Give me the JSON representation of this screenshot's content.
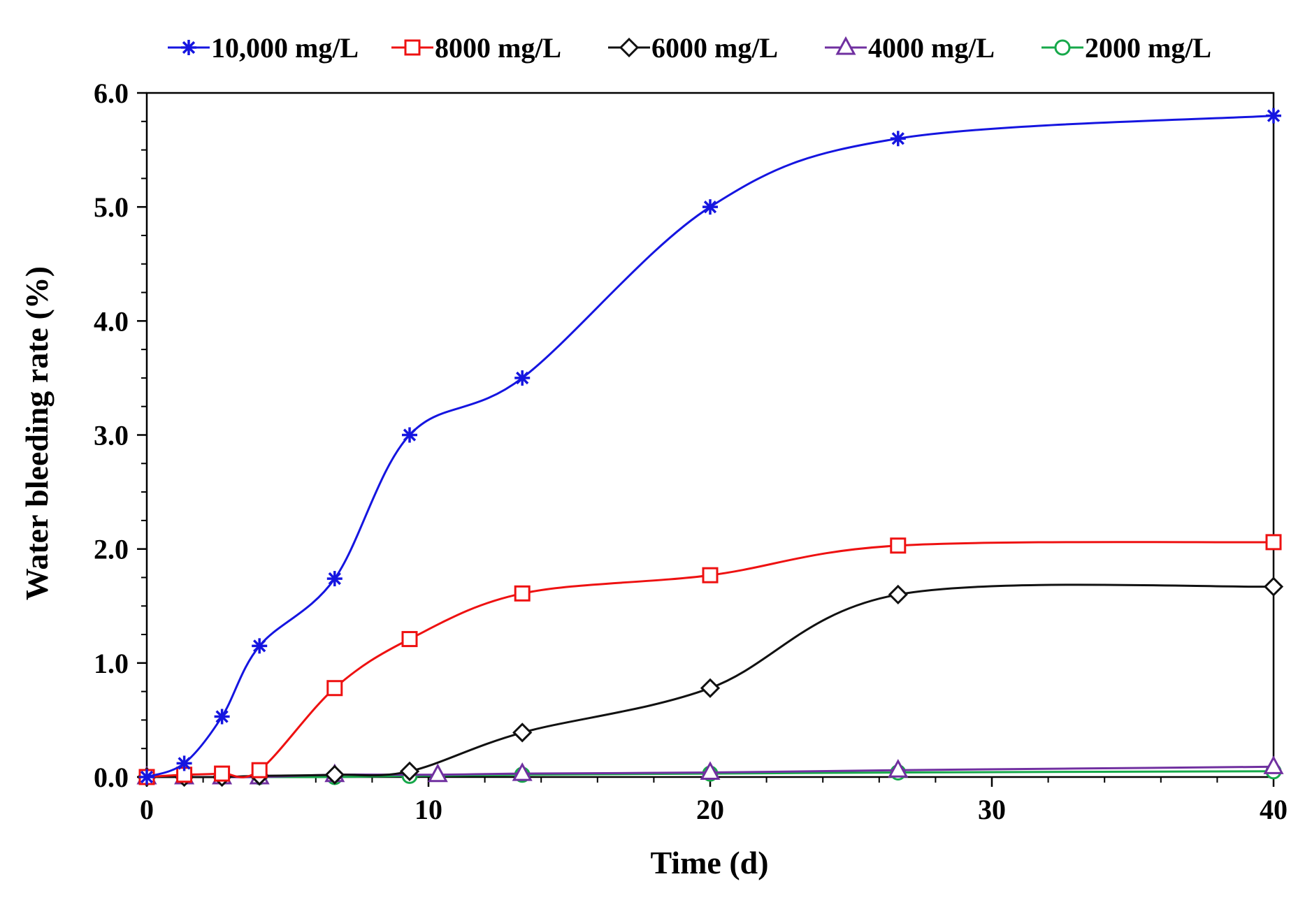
{
  "chart_data": {
    "type": "line",
    "title": "",
    "xlabel": "Time (d)",
    "ylabel": "Water bleeding rate (%)",
    "xlim": [
      0,
      40
    ],
    "ylim": [
      0,
      6
    ],
    "x_ticks": [
      0,
      10,
      20,
      30,
      40
    ],
    "x_tick_labels": [
      "0",
      "10",
      "20",
      "30",
      "40"
    ],
    "y_ticks": [
      0,
      1,
      2,
      3,
      4,
      5,
      6
    ],
    "y_tick_labels": [
      "0.0",
      "1.0",
      "2.0",
      "3.0",
      "4.0",
      "5.0",
      "6.0"
    ],
    "x_minor_step": 2,
    "y_minor_step": 0.25,
    "grid": false,
    "legend_position": "top",
    "series": [
      {
        "name": "10,000 mg/L",
        "marker": "asterisk",
        "color": "#1515E0",
        "x": [
          0,
          1.33,
          2.67,
          4,
          6.67,
          9.33,
          13.33,
          20,
          26.67,
          40
        ],
        "y": [
          0,
          0.12,
          0.53,
          1.15,
          1.74,
          3.0,
          3.5,
          5.0,
          5.6,
          5.8
        ]
      },
      {
        "name": "8000 mg/L",
        "marker": "square",
        "color": "#EE1111",
        "x": [
          0,
          1.33,
          2.67,
          4,
          6.67,
          9.33,
          13.33,
          20,
          26.67,
          40
        ],
        "y": [
          0,
          0.02,
          0.03,
          0.06,
          0.78,
          1.21,
          1.61,
          1.77,
          2.03,
          2.06
        ]
      },
      {
        "name": "6000 mg/L",
        "marker": "diamond",
        "color": "#111111",
        "x": [
          0,
          1.33,
          2.67,
          4,
          6.67,
          9.33,
          13.33,
          20,
          26.67,
          40
        ],
        "y": [
          0,
          0,
          0,
          0.01,
          0.02,
          0.05,
          0.39,
          0.78,
          1.6,
          1.67
        ]
      },
      {
        "name": "4000 mg/L",
        "marker": "triangle",
        "color": "#7030A0",
        "x": [
          0,
          1.33,
          2.67,
          4,
          6.67,
          10.33,
          13.33,
          20,
          26.67,
          40
        ],
        "y": [
          0,
          0,
          0,
          0,
          0.02,
          0.02,
          0.03,
          0.04,
          0.06,
          0.09
        ]
      },
      {
        "name": "2000 mg/L",
        "marker": "circle",
        "color": "#16A84A",
        "x": [
          0,
          1.33,
          2.67,
          4,
          6.67,
          9.33,
          13.33,
          20,
          26.67,
          40
        ],
        "y": [
          0,
          0,
          0,
          0,
          0,
          0.01,
          0.02,
          0.03,
          0.04,
          0.05
        ]
      }
    ]
  }
}
